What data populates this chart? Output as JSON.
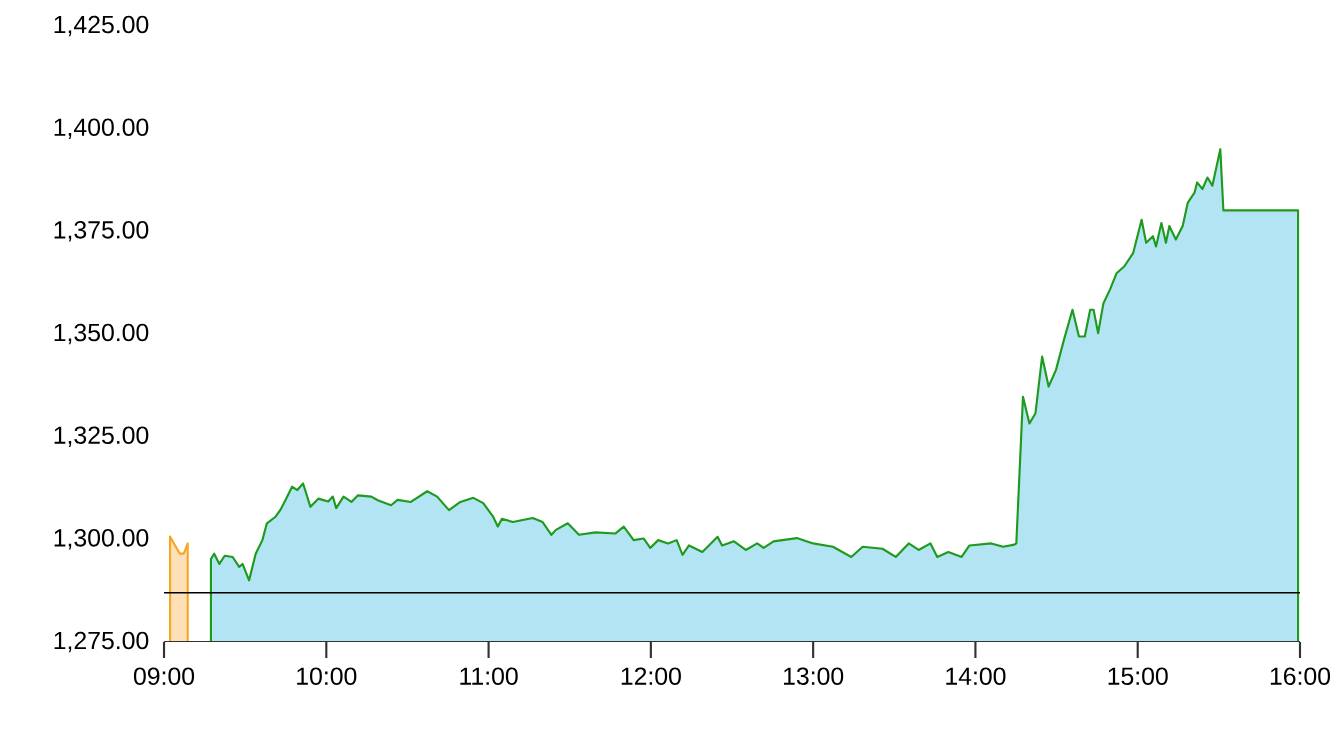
{
  "chart_data": {
    "type": "area",
    "x": [
      9.289,
      9.309,
      9.341,
      9.374,
      9.423,
      9.463,
      9.484,
      9.524,
      9.565,
      9.606,
      9.634,
      9.687,
      9.716,
      9.748,
      9.789,
      9.821,
      9.857,
      9.902,
      9.951,
      10.012,
      10.04,
      10.061,
      10.106,
      10.155,
      10.195,
      10.277,
      10.317,
      10.399,
      10.439,
      10.521,
      10.622,
      10.683,
      10.756,
      10.826,
      10.906,
      10.967,
      11.028,
      11.057,
      11.082,
      11.15,
      11.272,
      11.333,
      11.387,
      11.415,
      11.488,
      11.557,
      11.659,
      11.78,
      11.833,
      11.894,
      11.955,
      11.996,
      12.045,
      12.106,
      12.159,
      12.195,
      12.235,
      12.317,
      12.35,
      12.411,
      12.439,
      12.512,
      12.585,
      12.655,
      12.695,
      12.756,
      12.899,
      13.0,
      13.122,
      13.235,
      13.305,
      13.427,
      13.509,
      13.589,
      13.65,
      13.723,
      13.765,
      13.833,
      13.915,
      13.963,
      14.098,
      14.171,
      14.24,
      14.252,
      14.293,
      14.333,
      14.37,
      14.411,
      14.451,
      14.496,
      14.545,
      14.598,
      14.638,
      14.674,
      14.707,
      14.728,
      14.756,
      14.789,
      14.829,
      14.87,
      14.918,
      14.972,
      15.024,
      15.052,
      15.094,
      15.113,
      15.146,
      15.174,
      15.195,
      15.235,
      15.277,
      15.309,
      15.35,
      15.366,
      15.399,
      15.43,
      15.46,
      15.509,
      15.528,
      15.988
    ],
    "series": [
      {
        "color": "#fde0b8",
        "x": [
          9.037,
          9.061,
          9.098,
          9.122,
          9.146
        ],
        "values": [
          1300.7,
          1299,
          1296.5,
          1296.5,
          1299
        ]
      },
      {
        "color": "#b2e4f3",
        "values": [
          1295.2,
          1296.5,
          1294,
          1296,
          1295.7,
          1293.3,
          1294,
          1290,
          1296.5,
          1299.8,
          1303.9,
          1305.5,
          1307.1,
          1309.5,
          1312.8,
          1312,
          1313.6,
          1307.9,
          1309.9,
          1309.2,
          1310.4,
          1307.6,
          1310.4,
          1309.1,
          1310.7,
          1310.4,
          1309.5,
          1308.3,
          1309.6,
          1309.1,
          1311.7,
          1310.4,
          1307.1,
          1309.1,
          1310.1,
          1308.8,
          1305.5,
          1303.1,
          1305,
          1304.2,
          1305.2,
          1304.2,
          1301.1,
          1302.3,
          1303.9,
          1301.1,
          1301.7,
          1301.4,
          1303.1,
          1299.8,
          1300.2,
          1297.9,
          1299.8,
          1299,
          1299.8,
          1296.2,
          1298.5,
          1296.9,
          1298.2,
          1300.6,
          1298.5,
          1299.5,
          1297.4,
          1299,
          1297.9,
          1299.5,
          1300.3,
          1299,
          1298.2,
          1295.7,
          1298.2,
          1297.7,
          1295.7,
          1299,
          1297.4,
          1299,
          1295.7,
          1296.9,
          1295.7,
          1298.5,
          1299,
          1298.2,
          1298.7,
          1299,
          1334.7,
          1328.2,
          1330.7,
          1344.5,
          1337.2,
          1341.2,
          1348.5,
          1355.9,
          1349.4,
          1349.4,
          1355.9,
          1355.9,
          1350.2,
          1357.5,
          1360.8,
          1364.8,
          1366.5,
          1369.7,
          1377.8,
          1372.2,
          1373.8,
          1371.3,
          1377,
          1372.2,
          1376.3,
          1373,
          1376.3,
          1382,
          1384.4,
          1386.9,
          1385.3,
          1388.1,
          1386.1,
          1395,
          1380.1,
          1380.1
        ]
      }
    ],
    "xlim": [
      9,
      16
    ],
    "xticks": [
      {
        "value": 9,
        "label": "09:00"
      },
      {
        "value": 10,
        "label": "10:00"
      },
      {
        "value": 11,
        "label": "11:00"
      },
      {
        "value": 12,
        "label": "12:00"
      },
      {
        "value": 13,
        "label": "13:00"
      },
      {
        "value": 14,
        "label": "14:00"
      },
      {
        "value": 15,
        "label": "15:00"
      },
      {
        "value": 16,
        "label": "16:00"
      }
    ],
    "ylim": [
      1275,
      1425
    ],
    "yticks": [
      {
        "value": 1275,
        "label": "1,275.00"
      },
      {
        "value": 1300,
        "label": "1,300.00"
      },
      {
        "value": 1325,
        "label": "1,325.00"
      },
      {
        "value": 1350,
        "label": "1,350.00"
      },
      {
        "value": 1375,
        "label": "1,375.00"
      },
      {
        "value": 1400,
        "label": "1,400.00"
      },
      {
        "value": 1425,
        "label": "1,425.00"
      }
    ],
    "ref_lines": [
      {
        "axis": "y",
        "value": 1287,
        "color": "#000000"
      }
    ],
    "grid": false
  }
}
